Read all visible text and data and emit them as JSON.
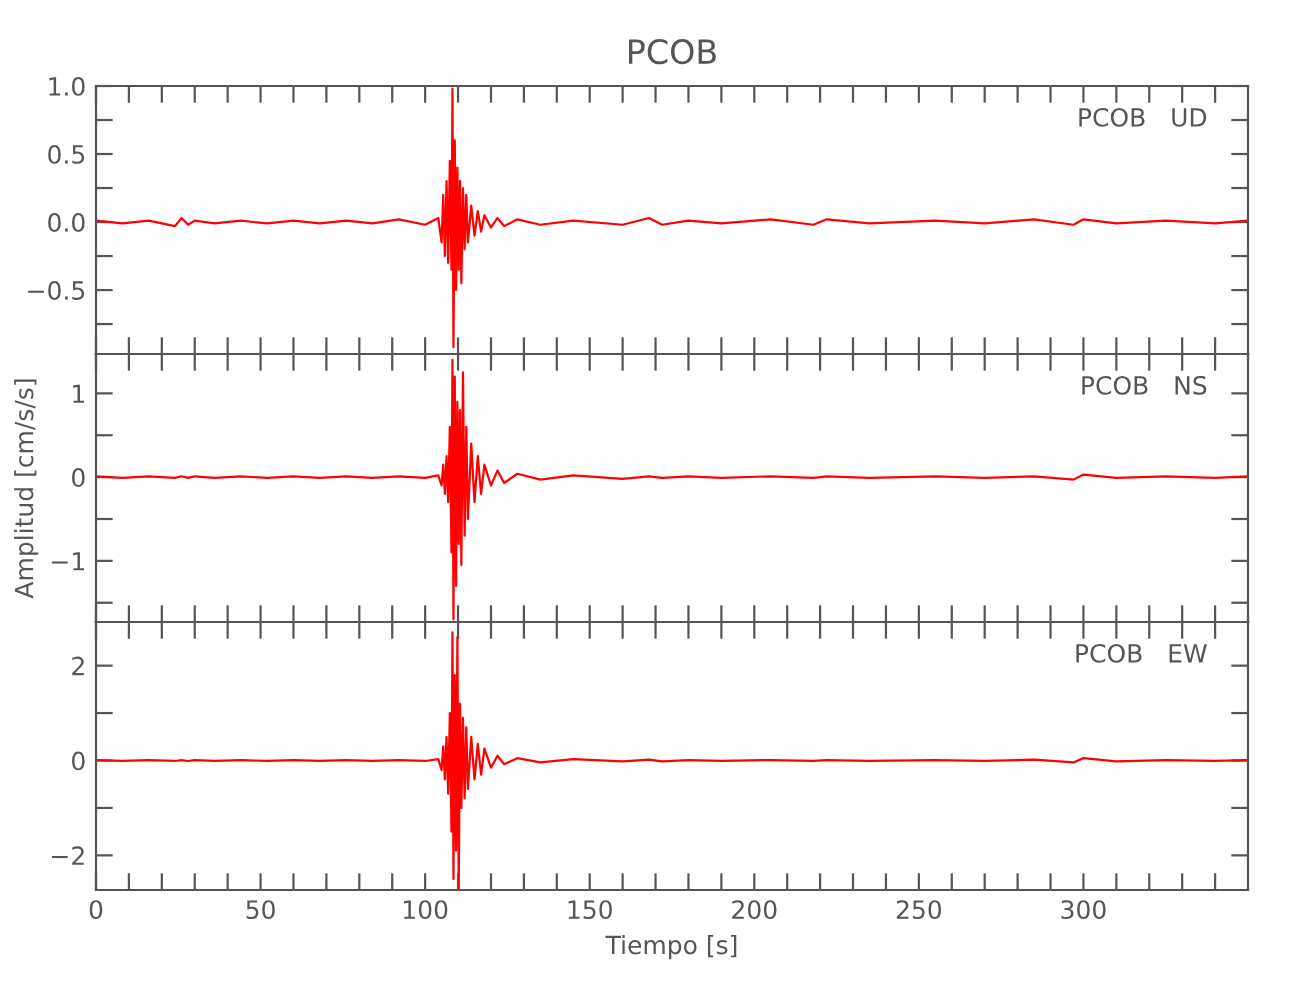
{
  "chart_data": [
    {
      "type": "line",
      "title": "PCOB",
      "annotations": [
        "PCOB   UD"
      ],
      "tick_labels": "y",
      "line_style": "solid",
      "marker": "none",
      "xlim": [
        0,
        350
      ],
      "xticks": [
        0,
        {
          "value": 10,
          "label": null
        },
        {
          "value": 20,
          "label": null
        },
        {
          "value": 30,
          "label": null
        },
        {
          "value": 40,
          "label": null
        },
        50,
        {
          "value": 60,
          "label": null
        },
        {
          "value": 70,
          "label": null
        },
        {
          "value": 80,
          "label": null
        },
        {
          "value": 90,
          "label": null
        },
        100,
        {
          "value": 110,
          "label": null
        },
        {
          "value": 120,
          "label": null
        },
        {
          "value": 130,
          "label": null
        },
        {
          "value": 140,
          "label": null
        },
        150,
        {
          "value": 160,
          "label": null
        },
        {
          "value": 170,
          "label": null
        },
        {
          "value": 180,
          "label": null
        },
        {
          "value": 190,
          "label": null
        },
        200,
        {
          "value": 210,
          "label": null
        },
        {
          "value": 220,
          "label": null
        },
        {
          "value": 230,
          "label": null
        },
        {
          "value": 240,
          "label": null
        },
        250,
        {
          "value": 260,
          "label": null
        },
        {
          "value": 270,
          "label": null
        },
        {
          "value": 280,
          "label": null
        },
        {
          "value": 290,
          "label": null
        },
        300,
        {
          "value": 310,
          "label": null
        },
        {
          "value": 320,
          "label": null
        },
        {
          "value": 330,
          "label": null
        },
        {
          "value": 340,
          "label": null
        }
      ],
      "ylim": [
        -0.97,
        1.0
      ],
      "yticks": [
        {
          "value": -0.75,
          "label": null
        },
        {
          "value": -0.5,
          "label": "−0.5"
        },
        {
          "value": -0.25,
          "label": null
        },
        {
          "value": 0,
          "label": "0.0"
        },
        {
          "value": 0.25,
          "label": null
        },
        0.5,
        {
          "value": 0.75,
          "label": null
        },
        {
          "value": 1,
          "label": "1.0"
        }
      ],
      "x": [
        0,
        8,
        16,
        24,
        26,
        28,
        30,
        36,
        44,
        52,
        60,
        68,
        76,
        84,
        92,
        100,
        104,
        105,
        105.5,
        106,
        106.5,
        107,
        107.5,
        108,
        108.3,
        108.6,
        109,
        109.4,
        109.8,
        110.2,
        110.6,
        111,
        111.5,
        112,
        112.5,
        113,
        114,
        115,
        116,
        117,
        118,
        120,
        122,
        124,
        128,
        135,
        145,
        160,
        168,
        172,
        180,
        190,
        205,
        218,
        222,
        235,
        255,
        270,
        285,
        297,
        300,
        310,
        325,
        340,
        350
      ],
      "series": [
        {
          "color": "#ff0000",
          "values": [
            0.01,
            -0.01,
            0.01,
            -0.03,
            0.03,
            -0.02,
            0.01,
            -0.01,
            0.01,
            -0.01,
            0.01,
            -0.01,
            0.01,
            -0.01,
            0.02,
            -0.02,
            0.03,
            -0.15,
            0.2,
            -0.25,
            0.3,
            -0.3,
            0.45,
            -0.35,
            0.98,
            -0.92,
            0.6,
            -0.5,
            0.4,
            -0.35,
            0.3,
            -0.45,
            0.25,
            -0.2,
            0.2,
            -0.15,
            0.12,
            -0.1,
            0.08,
            -0.07,
            0.05,
            -0.04,
            0.03,
            -0.03,
            0.02,
            -0.02,
            0.01,
            -0.02,
            0.03,
            -0.02,
            0.01,
            -0.01,
            0.02,
            -0.02,
            0.02,
            -0.01,
            0.01,
            -0.01,
            0.02,
            -0.02,
            0.02,
            -0.01,
            0.01,
            -0.01,
            0.01
          ]
        }
      ]
    },
    {
      "type": "line",
      "ylabel": "Amplitud [cm/s/s]",
      "annotations": [
        "PCOB   NS"
      ],
      "tick_labels": "y",
      "line_style": "solid",
      "marker": "none",
      "xlim": [
        0,
        350
      ],
      "xticks": [
        0,
        {
          "value": 10,
          "label": null
        },
        {
          "value": 20,
          "label": null
        },
        {
          "value": 30,
          "label": null
        },
        {
          "value": 40,
          "label": null
        },
        50,
        {
          "value": 60,
          "label": null
        },
        {
          "value": 70,
          "label": null
        },
        {
          "value": 80,
          "label": null
        },
        {
          "value": 90,
          "label": null
        },
        100,
        {
          "value": 110,
          "label": null
        },
        {
          "value": 120,
          "label": null
        },
        {
          "value": 130,
          "label": null
        },
        {
          "value": 140,
          "label": null
        },
        150,
        {
          "value": 160,
          "label": null
        },
        {
          "value": 170,
          "label": null
        },
        {
          "value": 180,
          "label": null
        },
        {
          "value": 190,
          "label": null
        },
        200,
        {
          "value": 210,
          "label": null
        },
        {
          "value": 220,
          "label": null
        },
        {
          "value": 230,
          "label": null
        },
        {
          "value": 240,
          "label": null
        },
        250,
        {
          "value": 260,
          "label": null
        },
        {
          "value": 270,
          "label": null
        },
        {
          "value": 280,
          "label": null
        },
        {
          "value": 290,
          "label": null
        },
        300,
        {
          "value": 310,
          "label": null
        },
        {
          "value": 320,
          "label": null
        },
        {
          "value": 330,
          "label": null
        },
        {
          "value": 340,
          "label": null
        }
      ],
      "ylim": [
        -1.73,
        1.47
      ],
      "yticks": [
        {
          "value": -1.5,
          "label": null
        },
        {
          "value": -1,
          "label": "−1"
        },
        {
          "value": -0.5,
          "label": null
        },
        0,
        {
          "value": 0.5,
          "label": null
        },
        1
      ],
      "x": [
        0,
        8,
        16,
        24,
        26,
        28,
        30,
        36,
        44,
        52,
        60,
        68,
        76,
        84,
        92,
        100,
        104,
        105,
        105.5,
        106,
        106.5,
        107,
        107.5,
        108,
        108.3,
        108.6,
        109,
        109.4,
        109.8,
        110.2,
        110.6,
        111,
        111.5,
        112,
        112.5,
        113,
        114,
        115,
        116,
        117,
        118,
        120,
        122,
        124,
        128,
        135,
        145,
        160,
        168,
        172,
        180,
        190,
        205,
        218,
        222,
        235,
        255,
        270,
        285,
        297,
        300,
        310,
        325,
        340,
        350
      ],
      "series": [
        {
          "color": "#ff0000",
          "values": [
            0.01,
            -0.01,
            0.01,
            -0.01,
            0.01,
            -0.01,
            0.01,
            -0.01,
            0.01,
            -0.01,
            0.01,
            -0.01,
            0.01,
            -0.01,
            0.01,
            -0.01,
            0.02,
            -0.1,
            0.15,
            -0.2,
            0.25,
            -0.3,
            0.6,
            -0.9,
            1.4,
            -1.7,
            1.2,
            -1.3,
            0.9,
            -0.8,
            0.8,
            -1.05,
            1.25,
            -0.7,
            0.6,
            -0.5,
            0.4,
            -0.3,
            0.25,
            -0.2,
            0.15,
            -0.1,
            0.08,
            -0.07,
            0.04,
            -0.03,
            0.02,
            -0.02,
            0.01,
            -0.01,
            0.01,
            -0.01,
            0.01,
            -0.01,
            0.01,
            -0.01,
            0.01,
            -0.01,
            0.01,
            -0.03,
            0.03,
            -0.01,
            0.01,
            -0.01,
            0.01
          ]
        }
      ]
    },
    {
      "type": "line",
      "xlabel": "Tiempo [s]",
      "annotations": [
        "PCOB   EW"
      ],
      "line_style": "solid",
      "marker": "none",
      "xlim": [
        0,
        350
      ],
      "xticks": [
        0,
        {
          "value": 10,
          "label": null
        },
        {
          "value": 20,
          "label": null
        },
        {
          "value": 30,
          "label": null
        },
        {
          "value": 40,
          "label": null
        },
        50,
        {
          "value": 60,
          "label": null
        },
        {
          "value": 70,
          "label": null
        },
        {
          "value": 80,
          "label": null
        },
        {
          "value": 90,
          "label": null
        },
        100,
        {
          "value": 110,
          "label": null
        },
        {
          "value": 120,
          "label": null
        },
        {
          "value": 130,
          "label": null
        },
        {
          "value": 140,
          "label": null
        },
        150,
        {
          "value": 160,
          "label": null
        },
        {
          "value": 170,
          "label": null
        },
        {
          "value": 180,
          "label": null
        },
        {
          "value": 190,
          "label": null
        },
        200,
        {
          "value": 210,
          "label": null
        },
        {
          "value": 220,
          "label": null
        },
        {
          "value": 230,
          "label": null
        },
        {
          "value": 240,
          "label": null
        },
        250,
        {
          "value": 260,
          "label": null
        },
        {
          "value": 270,
          "label": null
        },
        {
          "value": 280,
          "label": null
        },
        {
          "value": 290,
          "label": null
        },
        300,
        {
          "value": 310,
          "label": null
        },
        {
          "value": 320,
          "label": null
        },
        {
          "value": 330,
          "label": null
        },
        {
          "value": 340,
          "label": null
        }
      ],
      "ylim": [
        -2.73,
        2.92
      ],
      "yticks": [
        {
          "value": -2,
          "label": "−2"
        },
        {
          "value": -1,
          "label": null
        },
        0,
        {
          "value": 1,
          "label": null
        },
        2
      ],
      "x": [
        0,
        8,
        16,
        24,
        26,
        28,
        30,
        36,
        44,
        52,
        60,
        68,
        76,
        84,
        92,
        100,
        104,
        105,
        105.5,
        106,
        106.5,
        107,
        107.5,
        108,
        108.3,
        108.6,
        109,
        109.4,
        109.8,
        110.2,
        110.6,
        111,
        111.5,
        112,
        112.5,
        113,
        114,
        115,
        116,
        117,
        118,
        120,
        122,
        124,
        128,
        135,
        145,
        160,
        168,
        172,
        180,
        190,
        205,
        218,
        222,
        235,
        255,
        270,
        285,
        297,
        300,
        310,
        325,
        340,
        350
      ],
      "series": [
        {
          "color": "#ff0000",
          "values": [
            0.01,
            -0.01,
            0.01,
            -0.01,
            0.01,
            -0.01,
            0.01,
            -0.01,
            0.01,
            -0.01,
            0.01,
            -0.01,
            0.01,
            -0.01,
            0.01,
            -0.01,
            0.03,
            -0.2,
            0.3,
            -0.4,
            0.5,
            -0.7,
            1.0,
            -1.5,
            2.7,
            -2.5,
            1.8,
            -1.9,
            2.6,
            -2.7,
            1.2,
            -1.0,
            0.9,
            -0.8,
            0.7,
            -0.6,
            0.5,
            -0.4,
            0.35,
            -0.3,
            0.25,
            -0.15,
            0.1,
            -0.08,
            0.05,
            -0.04,
            0.03,
            -0.02,
            0.02,
            -0.02,
            0.01,
            -0.01,
            0.01,
            -0.01,
            0.01,
            -0.01,
            0.01,
            -0.01,
            0.02,
            -0.04,
            0.05,
            -0.02,
            0.01,
            -0.01,
            0.01
          ]
        }
      ]
    }
  ]
}
